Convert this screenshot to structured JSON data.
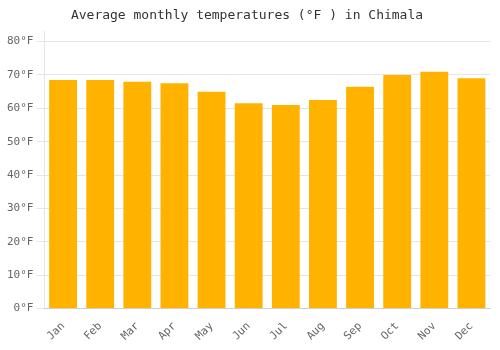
{
  "chart_data": {
    "type": "bar",
    "title": "Average monthly temperatures (°F ) in Chimala",
    "categories": [
      "Jan",
      "Feb",
      "Mar",
      "Apr",
      "May",
      "Jun",
      "Jul",
      "Aug",
      "Sep",
      "Oct",
      "Nov",
      "Dec"
    ],
    "values": [
      68.5,
      68.5,
      68.0,
      67.5,
      65.0,
      61.5,
      61.0,
      62.5,
      66.5,
      70.0,
      71.0,
      69.0
    ],
    "color": "#FFB300",
    "ylim": [
      0,
      83
    ],
    "yticks": [
      {
        "value": 0,
        "label": "0°F"
      },
      {
        "value": 10,
        "label": "10°F"
      },
      {
        "value": 20,
        "label": "20°F"
      },
      {
        "value": 30,
        "label": "30°F"
      },
      {
        "value": 40,
        "label": "40°F"
      },
      {
        "value": 50,
        "label": "50°F"
      },
      {
        "value": 60,
        "label": "60°F"
      },
      {
        "value": 70,
        "label": "70°F"
      },
      {
        "value": 80,
        "label": "80°F"
      }
    ],
    "grid": true
  }
}
